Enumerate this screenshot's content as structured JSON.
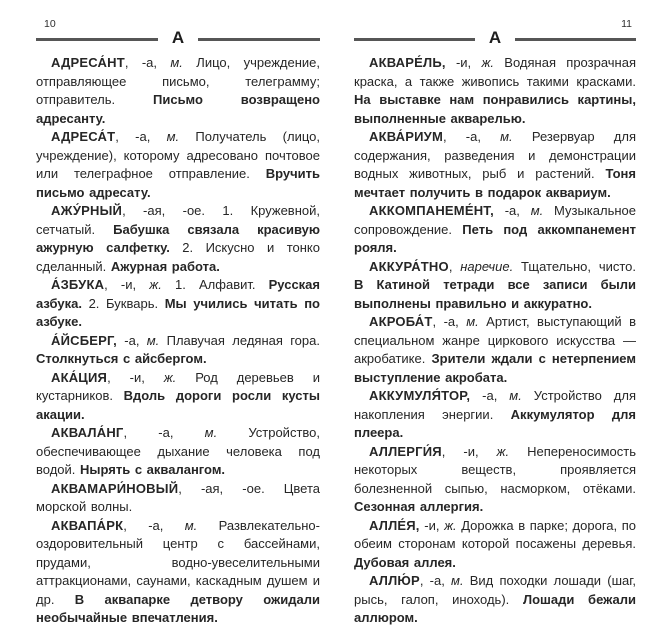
{
  "pages": [
    {
      "side": "left",
      "page_number": "10",
      "section_letter": "А",
      "entries": [
        {
          "segments": [
            {
              "style": "headword",
              "text": "АДРЕСА́НТ"
            },
            {
              "style": "normal",
              "text": ", -а, "
            },
            {
              "style": "italic",
              "text": "м."
            },
            {
              "style": "normal",
              "text": " Лицо, учреждение, отправляющее письмо, телеграмму; отправитель. "
            },
            {
              "style": "bold",
              "text": "Письмо возвращено адресанту."
            }
          ]
        },
        {
          "segments": [
            {
              "style": "headword",
              "text": "АДРЕСА́Т"
            },
            {
              "style": "normal",
              "text": ", -а, "
            },
            {
              "style": "italic",
              "text": "м."
            },
            {
              "style": "normal",
              "text": " Получатель (лицо, учреждение), которому адресовано почтовое или телеграфное отправление. "
            },
            {
              "style": "bold",
              "text": "Вручить письмо адресату."
            }
          ]
        },
        {
          "segments": [
            {
              "style": "headword",
              "text": "АЖУ́РНЫЙ"
            },
            {
              "style": "normal",
              "text": ", -ая, -ое. 1. Кружевной, сетчатый. "
            },
            {
              "style": "bold",
              "text": "Бабушка связала красивую ажурную салфетку. "
            },
            {
              "style": "normal",
              "text": "2. Искусно и тонко сделанный. "
            },
            {
              "style": "bold",
              "text": "Ажурная работа."
            }
          ]
        },
        {
          "segments": [
            {
              "style": "headword",
              "text": "А́ЗБУКА"
            },
            {
              "style": "normal",
              "text": ", -и, "
            },
            {
              "style": "italic",
              "text": "ж."
            },
            {
              "style": "normal",
              "text": " 1. Алфавит. "
            },
            {
              "style": "bold",
              "text": "Русская азбука. "
            },
            {
              "style": "normal",
              "text": "2. Букварь. "
            },
            {
              "style": "bold",
              "text": "Мы учились читать по азбуке."
            }
          ]
        },
        {
          "segments": [
            {
              "style": "headword",
              "text": "А́ЙСБЕРГ,"
            },
            {
              "style": "normal",
              "text": " -а, "
            },
            {
              "style": "italic",
              "text": "м."
            },
            {
              "style": "normal",
              "text": " Плавучая ледяная гора. "
            },
            {
              "style": "bold",
              "text": "Столкнуться с айсбергом."
            }
          ]
        },
        {
          "segments": [
            {
              "style": "headword",
              "text": "АКА́ЦИЯ"
            },
            {
              "style": "normal",
              "text": ", -и, "
            },
            {
              "style": "italic",
              "text": "ж."
            },
            {
              "style": "normal",
              "text": " Род деревьев и кустарников. "
            },
            {
              "style": "bold",
              "text": "Вдоль дороги росли кусты акации."
            }
          ]
        },
        {
          "segments": [
            {
              "style": "headword",
              "text": "АКВАЛА́НГ"
            },
            {
              "style": "normal",
              "text": ", -а, "
            },
            {
              "style": "italic",
              "text": "м."
            },
            {
              "style": "normal",
              "text": " Устройство, обеспечивающее дыхание человека под водой. "
            },
            {
              "style": "bold",
              "text": "Нырять с аквалангом."
            }
          ]
        },
        {
          "segments": [
            {
              "style": "headword",
              "text": "АКВАМАРИ́НОВЫЙ"
            },
            {
              "style": "normal",
              "text": ", -ая, -ое. Цвета морской волны."
            }
          ]
        },
        {
          "segments": [
            {
              "style": "headword",
              "text": "АКВАПА́РК"
            },
            {
              "style": "normal",
              "text": ", -а, "
            },
            {
              "style": "italic",
              "text": "м."
            },
            {
              "style": "normal",
              "text": " Развлекательно-оздоровительный центр с бассейнами, прудами, водно-увеселительными аттракционами, саунами, каскадным душем и др. "
            },
            {
              "style": "bold",
              "text": "В аквапарке детвору ожидали необычайные впечатления."
            }
          ]
        }
      ]
    },
    {
      "side": "right",
      "page_number": "11",
      "section_letter": "А",
      "entries": [
        {
          "segments": [
            {
              "style": "headword",
              "text": "АКВАРЕ́ЛЬ,"
            },
            {
              "style": "normal",
              "text": " -и, "
            },
            {
              "style": "italic",
              "text": "ж."
            },
            {
              "style": "normal",
              "text": " Водяная прозрачная краска, а также живопись такими красками. "
            },
            {
              "style": "bold",
              "text": "На выставке нам понравились картины, выполненные акварелью."
            }
          ]
        },
        {
          "segments": [
            {
              "style": "headword",
              "text": "АКВА́РИУМ"
            },
            {
              "style": "normal",
              "text": ", -а, "
            },
            {
              "style": "italic",
              "text": "м."
            },
            {
              "style": "normal",
              "text": " Резервуар для содержания, разведения и демонстрации водных животных, рыб и растений. "
            },
            {
              "style": "bold",
              "text": "Тоня мечтает получить в подарок аквариум."
            }
          ]
        },
        {
          "segments": [
            {
              "style": "headword",
              "text": "АККОМПАНЕМЕ́НТ,"
            },
            {
              "style": "normal",
              "text": " -а, "
            },
            {
              "style": "italic",
              "text": "м."
            },
            {
              "style": "normal",
              "text": " Музыкальное сопровождение. "
            },
            {
              "style": "bold",
              "text": "Петь под аккомпанемент рояля."
            }
          ]
        },
        {
          "segments": [
            {
              "style": "headword",
              "text": "АККУРА́ТНО"
            },
            {
              "style": "normal",
              "text": ", "
            },
            {
              "style": "italic",
              "text": "наречие."
            },
            {
              "style": "normal",
              "text": " Тщательно, чисто. "
            },
            {
              "style": "bold",
              "text": "В Катиной тетради все записи были выполнены правильно и аккуратно."
            }
          ]
        },
        {
          "segments": [
            {
              "style": "headword",
              "text": "АКРОБА́Т"
            },
            {
              "style": "normal",
              "text": ", -а, "
            },
            {
              "style": "italic",
              "text": "м."
            },
            {
              "style": "normal",
              "text": " Артист, выступающий в специальном жанре циркового искусства — акробатике. "
            },
            {
              "style": "bold",
              "text": "Зрители ждали с нетерпением выступление акробата."
            }
          ]
        },
        {
          "segments": [
            {
              "style": "headword",
              "text": "АККУМУЛЯ́ТОР,"
            },
            {
              "style": "normal",
              "text": " -а, "
            },
            {
              "style": "italic",
              "text": "м."
            },
            {
              "style": "normal",
              "text": " Устройство для накопления энергии. "
            },
            {
              "style": "bold",
              "text": "Аккумулятор для плеера."
            }
          ]
        },
        {
          "segments": [
            {
              "style": "headword",
              "text": "АЛЛЕРГИ́Я"
            },
            {
              "style": "normal",
              "text": ", -и, "
            },
            {
              "style": "italic",
              "text": "ж."
            },
            {
              "style": "normal",
              "text": " Непереносимость некоторых веществ, проявляется болезненной сыпью, насморком, отёками. "
            },
            {
              "style": "bold",
              "text": "Сезонная аллергия."
            }
          ]
        },
        {
          "segments": [
            {
              "style": "headword",
              "text": "АЛЛЕ́Я,"
            },
            {
              "style": "normal",
              "text": " -и, "
            },
            {
              "style": "italic",
              "text": "ж."
            },
            {
              "style": "normal",
              "text": " Дорожка в парке; дорога, по обеим сторонам которой посажены деревья. "
            },
            {
              "style": "bold",
              "text": "Дубовая аллея."
            }
          ]
        },
        {
          "segments": [
            {
              "style": "headword",
              "text": "АЛЛЮ́Р"
            },
            {
              "style": "normal",
              "text": ", -а, "
            },
            {
              "style": "italic",
              "text": "м."
            },
            {
              "style": "normal",
              "text": " Вид походки лошади (шаг, рысь, галоп, иноходь). "
            },
            {
              "style": "bold",
              "text": "Лошади бежали аллюром."
            }
          ]
        }
      ]
    }
  ]
}
